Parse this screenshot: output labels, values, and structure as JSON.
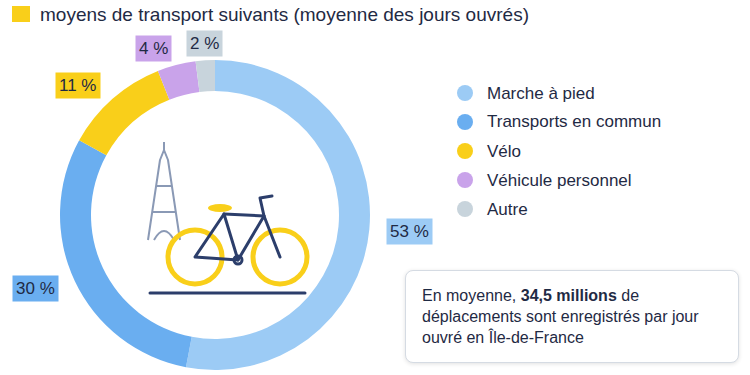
{
  "chart_data": {
    "type": "pie",
    "title": "moyens de transport suivants (moyenne des jours ouvrés)",
    "categories": [
      "Marche à pied",
      "Transports en commun",
      "Vélo",
      "Véhicule personnel",
      "Autre"
    ],
    "values": [
      53,
      30,
      11,
      4,
      2
    ],
    "value_labels": [
      "53 %",
      "30 %",
      "11 %",
      "4 %",
      "2 %"
    ],
    "colors": [
      "#9ccbf5",
      "#6aaef0",
      "#f9cf1a",
      "#c9a3ea",
      "#c8d4dc"
    ],
    "data_labels": true,
    "legend": "right",
    "annotation": {
      "text": "En moyenne, 34,5 millions de déplacements sont enregistrés par jour ouvré en Île-de-France",
      "bold": "34,5 millions"
    }
  }
}
